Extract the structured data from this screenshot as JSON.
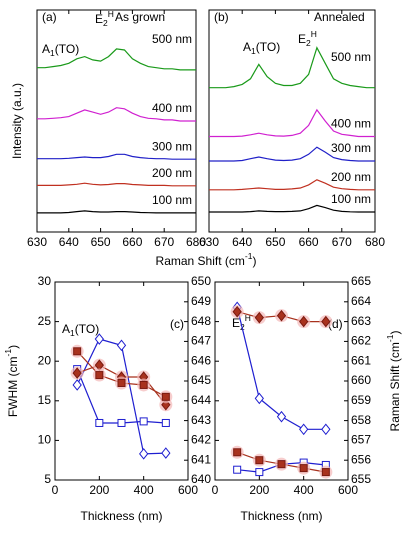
{
  "chart_data": [
    {
      "type": "line",
      "panel_label": "(a)",
      "subtitle": "As grown",
      "peak_labels": [
        [
          {
            "text": "A"
          },
          {
            "sub": "1"
          },
          {
            "text": "(TO)"
          }
        ],
        [
          {
            "text": "E"
          },
          {
            "sub": "2"
          },
          {
            "sup": "H"
          }
        ]
      ],
      "x_label": [
        {
          "text": "Raman Shift (cm"
        },
        {
          "sup": "-1"
        },
        {
          "text": ")"
        }
      ],
      "y_label": "Intensity (a.u.)",
      "xlim": [
        630,
        680
      ],
      "xticks": [
        630,
        640,
        650,
        660,
        670,
        680
      ],
      "ylim": [
        0,
        10
      ],
      "x": [
        630,
        632.5,
        635,
        637.5,
        640,
        642.5,
        645,
        647.5,
        650,
        652.5,
        655,
        657.5,
        660,
        662.5,
        665,
        667.5,
        670,
        672.5,
        675,
        677.5,
        680
      ],
      "series": [
        {
          "name": "500 nm",
          "color": "#1a9a1a",
          "values": [
            7.4,
            7.4,
            7.45,
            7.5,
            7.6,
            7.8,
            7.9,
            7.75,
            7.7,
            7.9,
            8.25,
            8.2,
            7.8,
            7.6,
            7.45,
            7.4,
            7.35,
            7.35,
            7.3,
            7.3,
            7.3
          ]
        },
        {
          "name": "400 nm",
          "color": "#d020d0",
          "values": [
            5.1,
            5.1,
            5.12,
            5.15,
            5.2,
            5.35,
            5.5,
            5.4,
            5.3,
            5.4,
            5.6,
            5.55,
            5.35,
            5.2,
            5.12,
            5.1,
            5.05,
            5.05,
            5.0,
            5.0,
            5.0
          ]
        },
        {
          "name": "300 nm",
          "color": "#2020c8",
          "values": [
            3.3,
            3.3,
            3.3,
            3.3,
            3.32,
            3.35,
            3.38,
            3.35,
            3.35,
            3.4,
            3.5,
            3.5,
            3.4,
            3.35,
            3.32,
            3.3,
            3.3,
            3.28,
            3.28,
            3.28,
            3.28
          ]
        },
        {
          "name": "200 nm",
          "color": "#c03020",
          "values": [
            2.1,
            2.1,
            2.1,
            2.1,
            2.12,
            2.15,
            2.2,
            2.15,
            2.12,
            2.14,
            2.18,
            2.18,
            2.14,
            2.12,
            2.1,
            2.1,
            2.1,
            2.08,
            2.08,
            2.08,
            2.08
          ]
        },
        {
          "name": "100 nm",
          "color": "#000000",
          "values": [
            0.86,
            0.86,
            0.86,
            0.86,
            0.88,
            0.92,
            0.95,
            0.92,
            0.9,
            0.9,
            0.92,
            0.92,
            0.9,
            0.88,
            0.87,
            0.86,
            0.86,
            0.86,
            0.86,
            0.86,
            0.86
          ]
        }
      ]
    },
    {
      "type": "line",
      "panel_label": "(b)",
      "subtitle": "Annealed",
      "peak_labels": [
        [
          {
            "text": "A"
          },
          {
            "sub": "1"
          },
          {
            "text": "(TO)"
          }
        ],
        [
          {
            "text": "E"
          },
          {
            "sub": "2"
          },
          {
            "sup": "H"
          }
        ]
      ],
      "xlim": [
        630,
        680
      ],
      "xticks": [
        630,
        640,
        650,
        660,
        670,
        680
      ],
      "ylim": [
        0,
        10
      ],
      "x": [
        630,
        632.5,
        635,
        637.5,
        640,
        642.5,
        645,
        647.5,
        650,
        652.5,
        655,
        657.5,
        660,
        662.5,
        665,
        667.5,
        670,
        672.5,
        675,
        677.5,
        680
      ],
      "series": [
        {
          "name": "500 nm",
          "color": "#1a9a1a",
          "values": [
            6.5,
            6.5,
            6.5,
            6.55,
            6.65,
            6.9,
            7.55,
            7.0,
            6.7,
            6.6,
            6.6,
            6.7,
            7.1,
            8.3,
            7.6,
            6.9,
            6.7,
            6.6,
            6.55,
            6.5,
            6.5
          ]
        },
        {
          "name": "400 nm",
          "color": "#d020d0",
          "values": [
            4.3,
            4.3,
            4.3,
            4.3,
            4.32,
            4.38,
            4.45,
            4.38,
            4.33,
            4.32,
            4.35,
            4.45,
            4.8,
            5.5,
            5.0,
            4.55,
            4.4,
            4.35,
            4.3,
            4.3,
            4.3
          ]
        },
        {
          "name": "300 nm",
          "color": "#2020c8",
          "values": [
            3.2,
            3.2,
            3.2,
            3.2,
            3.22,
            3.3,
            3.38,
            3.3,
            3.24,
            3.22,
            3.24,
            3.3,
            3.5,
            3.82,
            3.6,
            3.35,
            3.26,
            3.22,
            3.2,
            3.2,
            3.2
          ]
        },
        {
          "name": "200 nm",
          "color": "#c03020",
          "values": [
            1.9,
            1.9,
            1.9,
            1.9,
            1.92,
            1.95,
            1.98,
            1.95,
            1.92,
            1.92,
            1.94,
            1.98,
            2.12,
            2.35,
            2.2,
            2.02,
            1.95,
            1.92,
            1.9,
            1.9,
            1.9
          ]
        },
        {
          "name": "100 nm",
          "color": "#000000",
          "values": [
            0.9,
            0.9,
            0.9,
            0.9,
            0.9,
            0.92,
            0.95,
            0.93,
            0.92,
            0.92,
            0.93,
            0.95,
            1.05,
            1.2,
            1.1,
            0.98,
            0.93,
            0.91,
            0.9,
            0.9,
            0.9
          ]
        }
      ]
    },
    {
      "type": "scatter",
      "panel_label": "(c)",
      "peak_labels": [
        [
          {
            "text": "A"
          },
          {
            "sub": "1"
          },
          {
            "text": "(TO)"
          }
        ]
      ],
      "x_label": "Thickness (nm)",
      "y_label": [
        {
          "text": "FWHM (cm"
        },
        {
          "sup": "-1"
        },
        {
          "text": ")"
        }
      ],
      "xlim": [
        0,
        600
      ],
      "xticks": [
        0,
        200,
        400,
        600
      ],
      "ylim": [
        5,
        30
      ],
      "yticks": [
        5,
        10,
        15,
        20,
        25,
        30
      ],
      "show_ytick_labels": true,
      "y2lim": [
        640,
        650
      ],
      "y2ticks": [
        640,
        641,
        642,
        643,
        644,
        645,
        646,
        647,
        648,
        649,
        650
      ],
      "y_color": "#1f1fd0",
      "y2_color": "#c0281c",
      "x": [
        100,
        200,
        300,
        400,
        500
      ],
      "series": [
        {
          "marker": "diamond",
          "filled": false,
          "color": "#1f1fd0",
          "values": [
            17,
            22.8,
            22,
            8.3,
            8.4
          ]
        },
        {
          "marker": "square",
          "filled": false,
          "color": "#1f1fd0",
          "values": [
            19,
            12.2,
            12.2,
            12.4,
            12.2
          ]
        },
        {
          "marker": "diamond",
          "filled": true,
          "color": "#a8321e",
          "axis": "y2",
          "values": [
            645.4,
            645.8,
            645.2,
            645.2,
            643.8
          ]
        },
        {
          "marker": "square",
          "filled": true,
          "color": "#a8321e",
          "axis": "y2",
          "values": [
            646.5,
            645.3,
            644.9,
            644.8,
            644.2
          ]
        }
      ]
    },
    {
      "type": "scatter",
      "panel_label": "(d)",
      "peak_labels": [
        [
          {
            "text": "E"
          },
          {
            "sub": "2"
          },
          {
            "sup": "H"
          }
        ]
      ],
      "x_label": "Thickness (nm)",
      "y2_label": [
        {
          "text": "Raman Shift (cm"
        },
        {
          "sup": "-1"
        },
        {
          "text": ")"
        }
      ],
      "xlim": [
        0,
        600
      ],
      "xticks": [
        0,
        200,
        400,
        600
      ],
      "ylim": [
        5,
        30
      ],
      "yticks": [
        5,
        10,
        15,
        20,
        25,
        30
      ],
      "show_ytick_labels": false,
      "y2lim": [
        655,
        665
      ],
      "y2ticks": [
        655,
        656,
        657,
        658,
        659,
        660,
        661,
        662,
        663,
        664,
        665
      ],
      "y_color": "#1f1fd0",
      "y2_color": "#c0281c",
      "x": [
        100,
        200,
        300,
        400,
        500
      ],
      "series": [
        {
          "marker": "diamond",
          "filled": false,
          "color": "#1f1fd0",
          "values": [
            26.8,
            15.3,
            13,
            11.4,
            11.4
          ]
        },
        {
          "marker": "square",
          "filled": false,
          "color": "#1f1fd0",
          "values": [
            6.3,
            6.0,
            7.0,
            7.2,
            6.9
          ]
        },
        {
          "marker": "diamond",
          "filled": true,
          "color": "#a8321e",
          "axis": "y2",
          "values": [
            663.5,
            663.2,
            663.3,
            663.0,
            663.0
          ]
        },
        {
          "marker": "square",
          "filled": true,
          "color": "#a8321e",
          "axis": "y2",
          "values": [
            656.4,
            656.0,
            655.8,
            655.6,
            655.4
          ]
        }
      ]
    }
  ]
}
